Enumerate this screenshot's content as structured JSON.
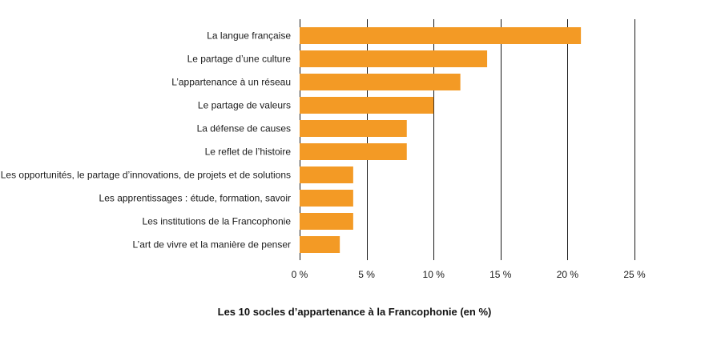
{
  "chart_data": {
    "type": "bar",
    "orientation": "horizontal",
    "title": "Les 10 socles d’appartenance à la Francophonie (en %)",
    "xlabel": "",
    "ylabel": "",
    "categories": [
      "La langue française",
      "Le partage d’une culture",
      "L’appartenance à un réseau",
      "Le partage de valeurs",
      "La défense de causes",
      "Le reflet de l’histoire",
      "Les opportunités, le partage d’innovations, de projets et de solutions",
      "Les apprentissages : étude, formation, savoir",
      "Les institutions de la Francophonie",
      "L’art de vivre et la manière de penser"
    ],
    "values": [
      21,
      14,
      12,
      10,
      8,
      8,
      4,
      4,
      4,
      3
    ],
    "xlim": [
      0,
      25
    ],
    "ticks": [
      0,
      5,
      10,
      15,
      20,
      25
    ],
    "tick_labels": [
      "0 %",
      "5 %",
      "10 %",
      "15 %",
      "20 %",
      "25 %"
    ],
    "grid": "vertical",
    "bar_color": "#f39a25",
    "grid_color": "#1a1a1a"
  }
}
